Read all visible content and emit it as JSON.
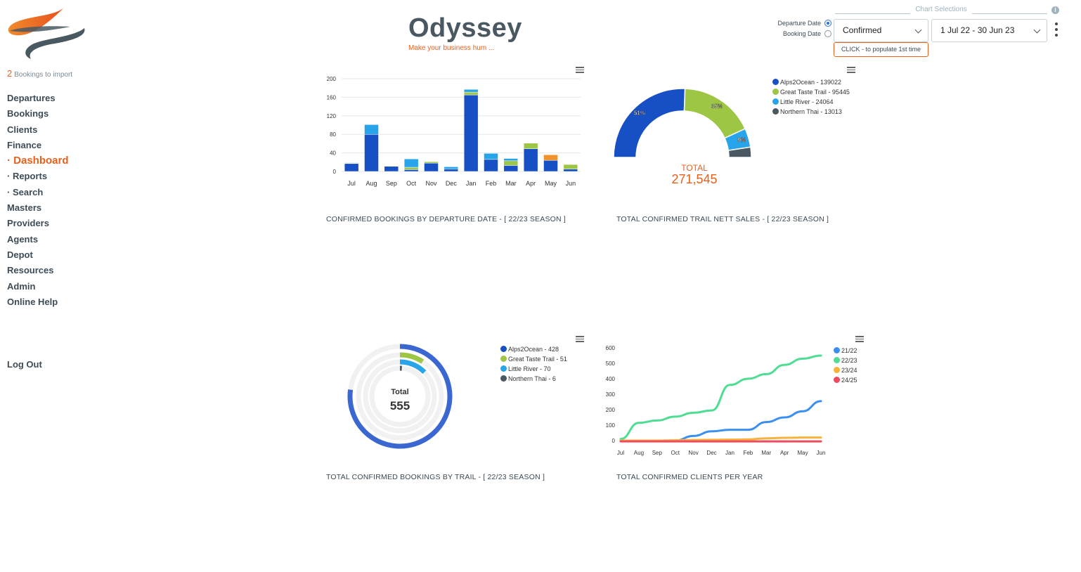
{
  "sidebar": {
    "import_count": "2",
    "import_label": "Bookings to import",
    "nav": [
      {
        "label": "Departures",
        "active": false
      },
      {
        "label": "Bookings",
        "active": false
      },
      {
        "label": "Clients",
        "active": false
      },
      {
        "label": "Finance",
        "active": false
      },
      {
        "label": "· Dashboard",
        "active": true
      },
      {
        "label": "· Reports",
        "active": false
      },
      {
        "label": "· Search",
        "active": false
      },
      {
        "label": "Masters",
        "active": false
      },
      {
        "label": "Providers",
        "active": false
      },
      {
        "label": "Agents",
        "active": false
      },
      {
        "label": "Depot",
        "active": false
      },
      {
        "label": "Resources",
        "active": false
      },
      {
        "label": "Admin",
        "active": false
      },
      {
        "label": "Online Help",
        "active": false
      }
    ],
    "logout_label": "Log Out"
  },
  "header": {
    "brand": "Odyssey",
    "tagline": "Make your business hum ..."
  },
  "selections": {
    "legend": "Chart Selections",
    "info_icon": "i",
    "radio_departure": "Departure Date",
    "radio_booking": "Booking Date",
    "status_value": "Confirmed",
    "date_range_value": "1 Jul 22 - 30 Jun 23",
    "populate_label": "CLICK - to populate 1st time"
  },
  "colors": {
    "Alps2Ocean": "#1750c4",
    "Great Taste Trail": "#9dc644",
    "Little River": "#27a4ea",
    "Northern Thai": "#4a5861",
    "orange": "#f0932b",
    "accent": "#e8601c"
  },
  "chart_data": [
    {
      "type": "bar",
      "stacked": true,
      "title": "CONFIRMED  BOOKINGS  BY  DEPARTURE DATE - [ 22/23 SEASON ]",
      "categories": [
        "Jul",
        "Aug",
        "Sep",
        "Oct",
        "Nov",
        "Dec",
        "Jan",
        "Feb",
        "Mar",
        "Apr",
        "May",
        "Jun"
      ],
      "yticks": [
        0,
        40,
        80,
        120,
        160,
        200
      ],
      "ylim": [
        0,
        200
      ],
      "series": [
        {
          "color": "#1750c4",
          "values": [
            17,
            80,
            11,
            4,
            18,
            5,
            165,
            26,
            13,
            49,
            24,
            5
          ]
        },
        {
          "color": "#9dc644",
          "values": [
            1,
            0,
            1,
            5,
            3,
            0,
            6,
            0,
            10,
            12,
            0,
            10
          ]
        },
        {
          "color": "#27a4ea",
          "values": [
            1,
            21,
            0,
            18,
            0,
            5,
            6,
            13,
            5,
            0,
            0,
            0
          ]
        },
        {
          "color": "#f0932b",
          "values": [
            0,
            0,
            0,
            0,
            0,
            0,
            0,
            0,
            0,
            0,
            12,
            0
          ]
        }
      ]
    },
    {
      "type": "pie",
      "variant": "semi-donut",
      "title": "TOTAL CONFIRMED TRAIL NETT SALES - [ 22/23 SEASON ]",
      "total_label": "TOTAL",
      "total_value": "271,545",
      "slices": [
        {
          "name": "Alps2Ocean",
          "value": 139022,
          "label": "51%",
          "legend": "Alps2Ocean - 139022"
        },
        {
          "name": "Great Taste Trail",
          "value": 95445,
          "label": "35%",
          "legend": "Great Taste Trail - 95445"
        },
        {
          "name": "Little River",
          "value": 24064,
          "label": "9%",
          "legend": "Little River - 24064"
        },
        {
          "name": "Northern Thai",
          "value": 13013,
          "label": "",
          "legend": "Northern Thai - 13013"
        }
      ]
    },
    {
      "type": "pie",
      "variant": "radial-bar",
      "title": "TOTAL CONFIRMED BOOKINGS BY TRAIL - [ 22/23 SEASON ]",
      "total_label": "Total",
      "total_value": "555",
      "slices": [
        {
          "name": "Alps2Ocean",
          "value": 428,
          "legend": "Alps2Ocean - 428"
        },
        {
          "name": "Great Taste Trail",
          "value": 51,
          "legend": "Great Taste Trail - 51"
        },
        {
          "name": "Little River",
          "value": 70,
          "legend": "Little River - 70"
        },
        {
          "name": "Northern Thai",
          "value": 6,
          "legend": "Northern Thai - 6"
        }
      ]
    },
    {
      "type": "line",
      "title": "TOTAL CONFIRMED CLIENTS PER YEAR",
      "x": [
        "Jul",
        "Aug",
        "Sep",
        "Oct",
        "Nov",
        "Dec",
        "Jan",
        "Feb",
        "Mar",
        "Apr",
        "May",
        "Jun"
      ],
      "yticks": [
        0,
        100,
        200,
        300,
        400,
        500,
        600
      ],
      "ylim": [
        0,
        600
      ],
      "series": [
        {
          "name": "21/22",
          "color": "#3a8ff0",
          "values": [
            0,
            0,
            0,
            0,
            30,
            60,
            70,
            70,
            120,
            150,
            190,
            255
          ]
        },
        {
          "name": "22/23",
          "color": "#4fdc93",
          "values": [
            10,
            115,
            130,
            155,
            180,
            195,
            360,
            400,
            430,
            490,
            530,
            550
          ]
        },
        {
          "name": "23/24",
          "color": "#f7b23b",
          "values": [
            0,
            0,
            0,
            2,
            4,
            5,
            6,
            8,
            15,
            18,
            20,
            20
          ]
        },
        {
          "name": "24/25",
          "color": "#ef4b5f",
          "values": [
            -5,
            -5,
            -5,
            -5,
            -5,
            -5,
            -5,
            -5,
            -5,
            -5,
            -5,
            -5
          ]
        }
      ]
    }
  ]
}
